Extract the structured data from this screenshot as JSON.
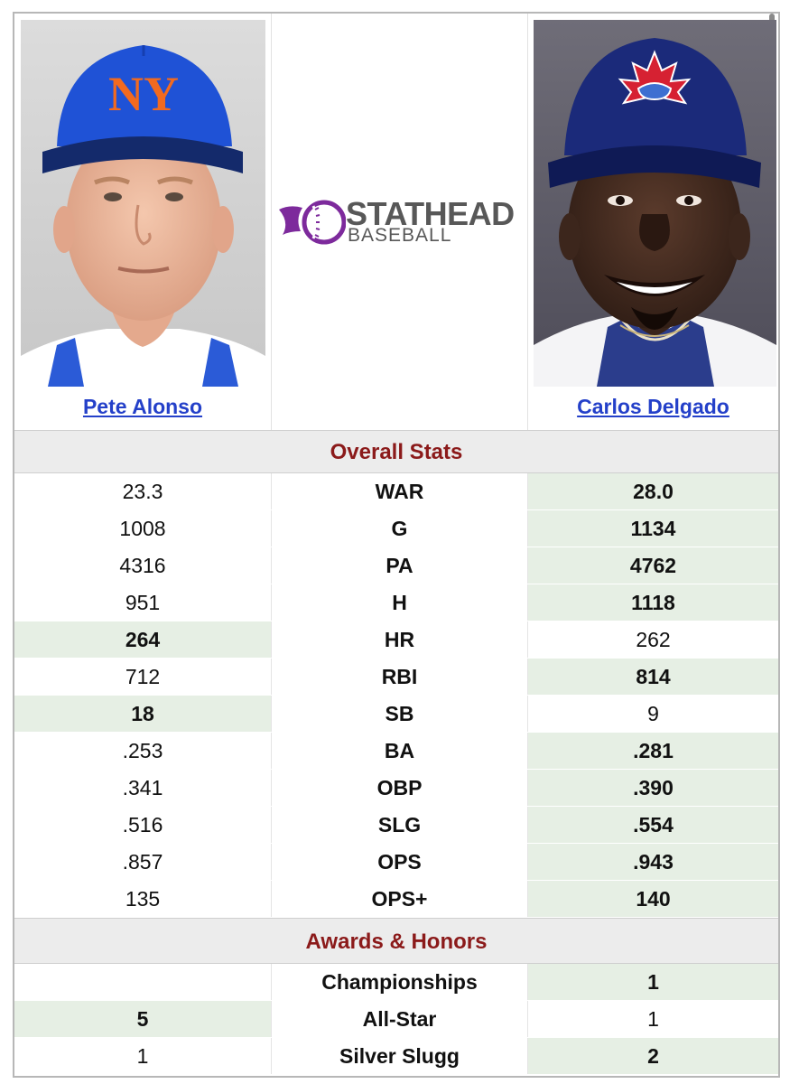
{
  "players": {
    "left": {
      "name": "Pete Alonso"
    },
    "right": {
      "name": "Carlos Delgado"
    }
  },
  "logo": {
    "main": "STATHEAD",
    "sub": "BASEBALL"
  },
  "colors": {
    "winner_bg": "#e6efe4",
    "section_title": "#8b1a1a",
    "link": "#2440c9",
    "logo_purple": "#7d2a9c"
  },
  "sections": {
    "overall": "Overall Stats",
    "awards": "Awards & Honors"
  },
  "overall_stats": [
    {
      "left": "23.3",
      "label": "WAR",
      "right": "28.0",
      "winner": "right"
    },
    {
      "left": "1008",
      "label": "G",
      "right": "1134",
      "winner": "right"
    },
    {
      "left": "4316",
      "label": "PA",
      "right": "4762",
      "winner": "right"
    },
    {
      "left": "951",
      "label": "H",
      "right": "1118",
      "winner": "right"
    },
    {
      "left": "264",
      "label": "HR",
      "right": "262",
      "winner": "left"
    },
    {
      "left": "712",
      "label": "RBI",
      "right": "814",
      "winner": "right"
    },
    {
      "left": "18",
      "label": "SB",
      "right": "9",
      "winner": "left"
    },
    {
      "left": ".253",
      "label": "BA",
      "right": ".281",
      "winner": "right"
    },
    {
      "left": ".341",
      "label": "OBP",
      "right": ".390",
      "winner": "right"
    },
    {
      "left": ".516",
      "label": "SLG",
      "right": ".554",
      "winner": "right"
    },
    {
      "left": ".857",
      "label": "OPS",
      "right": ".943",
      "winner": "right"
    },
    {
      "left": "135",
      "label": "OPS+",
      "right": "140",
      "winner": "right"
    }
  ],
  "awards": [
    {
      "left": "",
      "label": "Championships",
      "right": "1",
      "winner": "right"
    },
    {
      "left": "5",
      "label": "All-Star",
      "right": "1",
      "winner": "left"
    },
    {
      "left": "1",
      "label": "Silver Slugg",
      "right": "2",
      "winner": "right"
    }
  ]
}
